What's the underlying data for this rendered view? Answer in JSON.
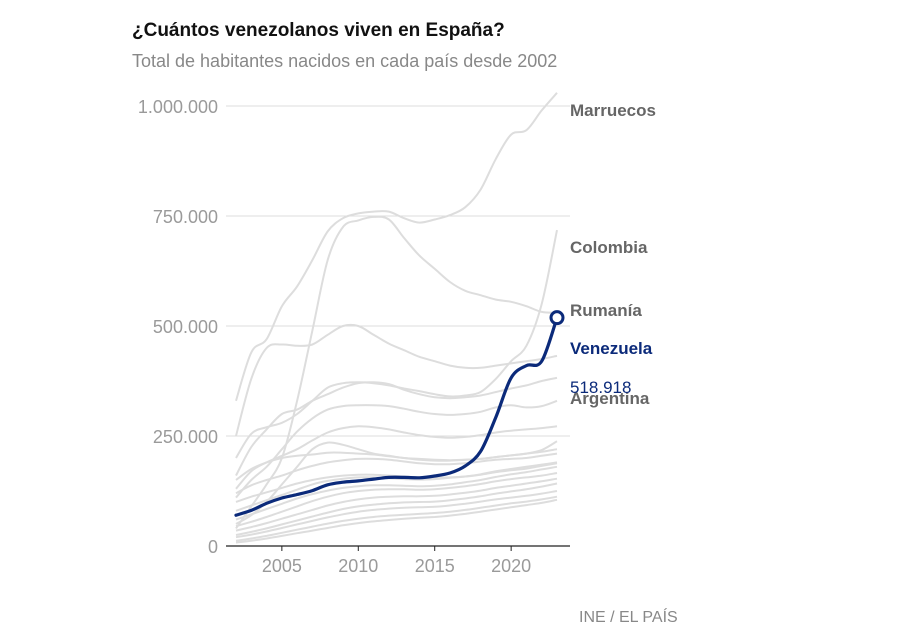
{
  "title": "¿Cuántos venezolanos viven en España?",
  "subtitle": "Total de habitantes nacidos en cada país desde 2002",
  "source": "INE / EL PAÍS",
  "colors": {
    "highlight": "#0b2a7a",
    "background_line": "#dddddd",
    "grid": "#dedede",
    "text_grey": "#666666"
  },
  "chart_data": {
    "type": "line",
    "title": "¿Cuántos venezolanos viven en España?",
    "subtitle": "Total de habitantes nacidos en cada país desde 2002",
    "xlim": [
      2002,
      2023
    ],
    "ylim": [
      0,
      1000000
    ],
    "y_ticks": [
      0,
      250000,
      500000,
      750000,
      1000000
    ],
    "y_tick_labels": [
      "0",
      "250.000",
      "500.000",
      "750.000",
      "1.000.000"
    ],
    "x_ticks": [
      2005,
      2010,
      2015,
      2020
    ],
    "x_tick_labels": [
      "2005",
      "2010",
      "2015",
      "2020"
    ],
    "highlight": {
      "name": "Venezuela",
      "value_label": "518.918",
      "x": [
        2002,
        2003,
        2004,
        2005,
        2006,
        2007,
        2008,
        2009,
        2010,
        2011,
        2012,
        2013,
        2014,
        2015,
        2016,
        2017,
        2018,
        2019,
        2020,
        2021,
        2022,
        2023
      ],
      "values": [
        70000,
        81000,
        97000,
        109000,
        117000,
        126000,
        139000,
        145000,
        148000,
        152000,
        156000,
        156000,
        155000,
        159000,
        166000,
        182000,
        215000,
        293000,
        382000,
        410000,
        420000,
        518918
      ]
    },
    "labeled_series": [
      {
        "name": "Marruecos",
        "values": [
          330000,
          440000,
          470000,
          545000,
          590000,
          650000,
          715000,
          745000,
          756000,
          760000,
          760000,
          745000,
          735000,
          742000,
          752000,
          770000,
          810000,
          880000,
          935000,
          945000,
          990000,
          1030000
        ]
      },
      {
        "name": "Colombia",
        "values": [
          200000,
          255000,
          270000,
          280000,
          300000,
          330000,
          360000,
          370000,
          372000,
          370000,
          365000,
          358000,
          352000,
          345000,
          340000,
          342000,
          350000,
          380000,
          420000,
          455000,
          550000,
          718000
        ]
      },
      {
        "name": "Rumanía",
        "values": [
          40000,
          90000,
          140000,
          200000,
          330000,
          490000,
          650000,
          725000,
          740000,
          748000,
          742000,
          700000,
          660000,
          630000,
          600000,
          580000,
          570000,
          560000,
          555000,
          545000,
          532000,
          530000
        ]
      },
      {
        "name": "Argentina",
        "values": [
          160000,
          225000,
          265000,
          300000,
          310000,
          330000,
          345000,
          360000,
          370000,
          372000,
          368000,
          355000,
          345000,
          338000,
          336000,
          338000,
          342000,
          350000,
          358000,
          365000,
          375000,
          382000
        ]
      }
    ],
    "other_series": [
      {
        "name": "",
        "values": [
          250000,
          380000,
          450000,
          458000,
          455000,
          458000,
          480000,
          500000,
          500000,
          480000,
          460000,
          445000,
          430000,
          420000,
          410000,
          405000,
          405000,
          410000,
          415000,
          420000,
          425000,
          432000
        ]
      },
      {
        "name": "",
        "values": [
          110000,
          150000,
          180000,
          220000,
          260000,
          290000,
          310000,
          318000,
          320000,
          320000,
          318000,
          312000,
          305000,
          300000,
          298000,
          300000,
          305000,
          315000,
          320000,
          315000,
          318000,
          330000
        ]
      },
      {
        "name": "",
        "values": [
          130000,
          170000,
          190000,
          205000,
          220000,
          240000,
          258000,
          268000,
          272000,
          270000,
          265000,
          258000,
          252000,
          248000,
          246000,
          248000,
          252000,
          258000,
          262000,
          265000,
          268000,
          272000
        ]
      },
      {
        "name": "",
        "values": [
          50000,
          70000,
          100000,
          140000,
          180000,
          220000,
          235000,
          230000,
          220000,
          210000,
          205000,
          200000,
          198000,
          196000,
          195000,
          196000,
          198000,
          202000,
          206000,
          210000,
          218000,
          238000
        ]
      },
      {
        "name": "",
        "values": [
          150000,
          175000,
          190000,
          200000,
          205000,
          208000,
          212000,
          212000,
          210000,
          208000,
          204000,
          200000,
          196000,
          194000,
          194000,
          196000,
          198000,
          202000,
          206000,
          210000,
          214000,
          220000
        ]
      },
      {
        "name": "",
        "values": [
          120000,
          138000,
          150000,
          160000,
          172000,
          182000,
          190000,
          195000,
          198000,
          198000,
          196000,
          192000,
          188000,
          186000,
          186000,
          188000,
          192000,
          196000,
          198000,
          200000,
          205000,
          210000
        ]
      },
      {
        "name": "",
        "values": [
          100000,
          112000,
          122000,
          132000,
          142000,
          150000,
          156000,
          160000,
          162000,
          162000,
          160000,
          158000,
          156000,
          155000,
          156000,
          158000,
          162000,
          168000,
          172000,
          176000,
          182000,
          188000
        ]
      },
      {
        "name": "",
        "values": [
          80000,
          92000,
          104000,
          116000,
          128000,
          140000,
          148000,
          153000,
          156000,
          156000,
          154000,
          152000,
          151000,
          152000,
          155000,
          158000,
          163000,
          170000,
          175000,
          180000,
          185000,
          190000
        ]
      },
      {
        "name": "",
        "values": [
          60000,
          72000,
          84000,
          96000,
          108000,
          118000,
          126000,
          132000,
          136000,
          138000,
          138000,
          137000,
          136000,
          137000,
          140000,
          145000,
          150000,
          157000,
          163000,
          168000,
          174000,
          180000
        ]
      },
      {
        "name": "",
        "values": [
          45000,
          55000,
          66000,
          78000,
          90000,
          102000,
          112000,
          120000,
          125000,
          128000,
          129000,
          129000,
          128000,
          129000,
          132000,
          136000,
          141000,
          147000,
          152000,
          156000,
          160000,
          166000
        ]
      },
      {
        "name": "",
        "values": [
          35000,
          43000,
          52000,
          62000,
          72000,
          82000,
          92000,
          100000,
          106000,
          110000,
          112000,
          113000,
          113000,
          114000,
          117000,
          121000,
          126000,
          132000,
          137000,
          142000,
          147000,
          153000
        ]
      },
      {
        "name": "",
        "values": [
          25000,
          32000,
          40000,
          49000,
          58000,
          67000,
          76000,
          84000,
          90000,
          94000,
          97000,
          99000,
          100000,
          101000,
          104000,
          108000,
          113000,
          119000,
          124000,
          129000,
          135000,
          142000
        ]
      },
      {
        "name": "",
        "values": [
          20000,
          26000,
          33000,
          41000,
          49000,
          57000,
          65000,
          72000,
          78000,
          82000,
          85000,
          87000,
          88000,
          89000,
          92000,
          96000,
          101000,
          106000,
          110000,
          114000,
          119000,
          125000
        ]
      },
      {
        "name": "",
        "values": [
          12000,
          17000,
          23000,
          30000,
          37000,
          44000,
          51000,
          57000,
          62000,
          66000,
          69000,
          71000,
          73000,
          75000,
          78000,
          82000,
          87000,
          92000,
          97000,
          101000,
          106000,
          112000
        ]
      },
      {
        "name": "",
        "values": [
          8000,
          12000,
          17000,
          23000,
          29000,
          35000,
          41000,
          47000,
          52000,
          56000,
          59000,
          62000,
          64000,
          66000,
          69000,
          73000,
          78000,
          83000,
          88000,
          93000,
          98000,
          105000
        ]
      }
    ]
  }
}
